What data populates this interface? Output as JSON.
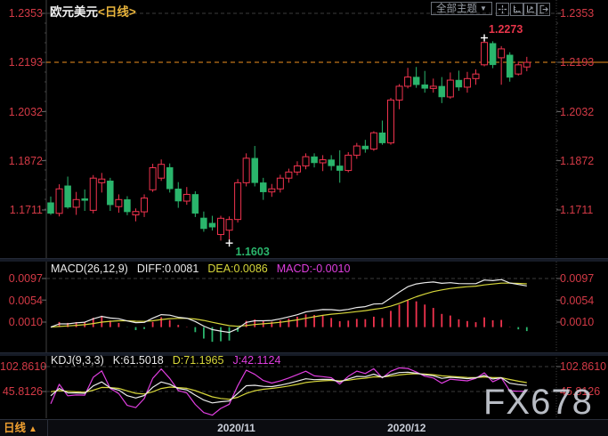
{
  "header": {
    "symbol": "欧元美元",
    "period_tag": "<日线>",
    "theme_button_label": "全部主题",
    "theme_arrow": "▼",
    "toolbar_icon_names": [
      "crosshair-icon",
      "axis-scale-icon",
      "axis-scale-arrow-icon",
      "exit-panel-icon"
    ]
  },
  "main_chart": {
    "y_axis_labels": [
      "1.2353",
      "1.2193",
      "1.2032",
      "1.1872",
      "1.1711"
    ],
    "high_label": "1.2273",
    "low_label": "1.1603",
    "last_price_label": "1.2193"
  },
  "macd_panel": {
    "name": "MACD(26,12,9)",
    "diff_text": "DIFF:0.0081",
    "dea_text": "DEA:0.0086",
    "macd_text": "MACD:-0.0010",
    "axis_labels": [
      "0.0097",
      "0.0054",
      "0.0010"
    ]
  },
  "kdj_panel": {
    "name": "KDJ(9,3,3)",
    "k_text": "K:61.5018",
    "d_text": "D:71.1965",
    "j_text": "J:42.1124",
    "axis_labels": [
      "102.8610",
      "45.8126"
    ]
  },
  "bottom_bar": {
    "period_label": "日线",
    "arrow": "▲"
  },
  "watermark": "FX678",
  "colors": {
    "up": "#f0334e",
    "down": "#2ab56c",
    "axis_text": "#d43a46",
    "orange_line": "#ef8f1f",
    "yellow_line": "#d6d63a",
    "magenta_line": "#df3edf",
    "white_line": "#ebebeb",
    "grid": "#3c3c3c",
    "axis_line": "#3f3f3f",
    "tick": "#6a6a6a"
  },
  "chart_data": {
    "type": "candlestick",
    "title": "欧元美元 <日线> (EUR/USD daily)",
    "y_axis_ticks": [
      1.2353,
      1.2193,
      1.2032,
      1.1872,
      1.1711
    ],
    "high_marker": 1.2273,
    "low_marker": 1.1603,
    "last_price": 1.2193,
    "date_ticks": [
      {
        "label": "2020/11",
        "index": 22
      },
      {
        "label": "2020/12",
        "index": 42
      }
    ],
    "ohlc": [
      [
        1.1735,
        1.1755,
        1.1695,
        1.17
      ],
      [
        1.17,
        1.1795,
        1.169,
        1.178
      ],
      [
        1.179,
        1.182,
        1.1715,
        1.172
      ],
      [
        1.172,
        1.177,
        1.1695,
        1.1745
      ],
      [
        1.1748,
        1.1778,
        1.1708,
        1.1742
      ],
      [
        1.171,
        1.1825,
        1.17,
        1.1815
      ],
      [
        1.18,
        1.1832,
        1.1768,
        1.1812
      ],
      [
        1.1806,
        1.1816,
        1.1708,
        1.1728
      ],
      [
        1.1722,
        1.1762,
        1.1702,
        1.1745
      ],
      [
        1.1745,
        1.1756,
        1.1694,
        1.1705
      ],
      [
        1.1695,
        1.1716,
        1.1674,
        1.1706
      ],
      [
        1.1705,
        1.1762,
        1.1688,
        1.175
      ],
      [
        1.1777,
        1.1862,
        1.177,
        1.1849
      ],
      [
        1.1815,
        1.1876,
        1.1806,
        1.186
      ],
      [
        1.185,
        1.1863,
        1.1768,
        1.178
      ],
      [
        1.178,
        1.1802,
        1.1718,
        1.174
      ],
      [
        1.174,
        1.1786,
        1.1728,
        1.1762
      ],
      [
        1.1762,
        1.1772,
        1.1688,
        1.17
      ],
      [
        1.1685,
        1.1706,
        1.164,
        1.165
      ],
      [
        1.1668,
        1.1692,
        1.1644,
        1.1655
      ],
      [
        1.1631,
        1.1692,
        1.1611,
        1.1684
      ],
      [
        1.1645,
        1.169,
        1.1603,
        1.168
      ],
      [
        1.168,
        1.1812,
        1.167,
        1.18
      ],
      [
        1.18,
        1.1896,
        1.1788,
        1.188
      ],
      [
        1.188,
        1.192,
        1.1788,
        1.18
      ],
      [
        1.18,
        1.1816,
        1.1744,
        1.177
      ],
      [
        1.177,
        1.1796,
        1.1754,
        1.178
      ],
      [
        1.178,
        1.1826,
        1.1768,
        1.1815
      ],
      [
        1.1815,
        1.1846,
        1.18,
        1.1835
      ],
      [
        1.1835,
        1.187,
        1.1824,
        1.1855
      ],
      [
        1.1855,
        1.1896,
        1.1844,
        1.1885
      ],
      [
        1.1885,
        1.1896,
        1.185,
        1.1865
      ],
      [
        1.1865,
        1.189,
        1.1838,
        1.1875
      ],
      [
        1.1875,
        1.189,
        1.184,
        1.1855
      ],
      [
        1.1855,
        1.1906,
        1.18,
        1.184
      ],
      [
        1.184,
        1.19,
        1.1834,
        1.189
      ],
      [
        1.189,
        1.193,
        1.1878,
        1.192
      ],
      [
        1.192,
        1.194,
        1.1898,
        1.191
      ],
      [
        1.191,
        1.1968,
        1.1904,
        1.1963
      ],
      [
        1.1963,
        1.2003,
        1.1924,
        1.193
      ],
      [
        1.193,
        1.2077,
        1.1924,
        1.207
      ],
      [
        1.207,
        1.2122,
        1.204,
        1.2115
      ],
      [
        1.2115,
        1.2175,
        1.2108,
        1.2145
      ],
      [
        1.2145,
        1.2178,
        1.211,
        1.212
      ],
      [
        1.212,
        1.2165,
        1.2094,
        1.2108
      ],
      [
        1.2108,
        1.214,
        1.2094,
        1.2115
      ],
      [
        1.2115,
        1.2145,
        1.206,
        1.208
      ],
      [
        1.208,
        1.216,
        1.2074,
        1.2135
      ],
      [
        1.2135,
        1.2166,
        1.21,
        1.2112
      ],
      [
        1.2112,
        1.2162,
        1.2094,
        1.214
      ],
      [
        1.214,
        1.217,
        1.212,
        1.2155
      ],
      [
        1.2185,
        1.2273,
        1.218,
        1.2258
      ],
      [
        1.2255,
        1.2262,
        1.2174,
        1.2185
      ],
      [
        1.2208,
        1.2246,
        1.212,
        1.2237
      ],
      [
        1.2217,
        1.2226,
        1.213,
        1.2144
      ],
      [
        1.2155,
        1.2196,
        1.215,
        1.2185
      ],
      [
        1.2178,
        1.2211,
        1.2164,
        1.2193
      ]
    ],
    "indicators": {
      "macd": {
        "params": [
          26,
          12,
          9
        ],
        "diff": 0.0081,
        "dea": 0.0086,
        "macd": -0.001,
        "axis_ticks": [
          0.0097,
          0.0054,
          0.001
        ]
      },
      "kdj": {
        "params": [
          9,
          3,
          3
        ],
        "k": 61.5018,
        "d": 71.1965,
        "j": 42.1124,
        "axis_ticks": [
          102.861,
          45.8126
        ]
      }
    }
  }
}
